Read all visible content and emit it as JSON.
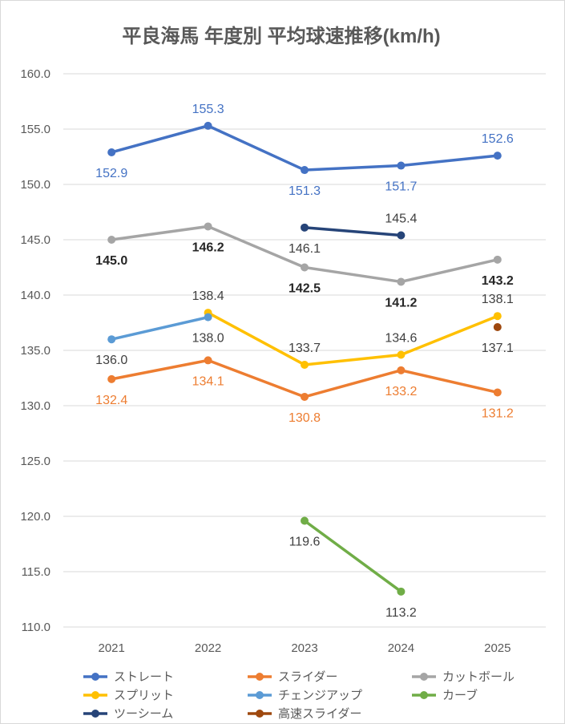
{
  "chart_data": {
    "type": "line",
    "title": "平良海馬 年度別 平均球速推移(km/h)",
    "categories": [
      "2021",
      "2022",
      "2023",
      "2024",
      "2025"
    ],
    "y_tick_labels": [
      "160.0",
      "155.0",
      "150.0",
      "145.0",
      "140.0",
      "135.0",
      "130.0",
      "125.0",
      "120.0",
      "115.0",
      "110.0"
    ],
    "ylim": [
      110,
      160
    ],
    "y_step": 5,
    "grid": true,
    "legend_position": "bottom",
    "series": [
      {
        "name": "ストレート",
        "color": "#4472c4",
        "values": [
          152.9,
          155.3,
          151.3,
          151.7,
          152.6
        ],
        "labels": [
          "152.9",
          "155.3",
          "151.3",
          "151.7",
          "152.6"
        ],
        "label_color": "#4472c4",
        "label_bold": false
      },
      {
        "name": "スライダー",
        "color": "#ed7d31",
        "values": [
          132.4,
          134.1,
          130.8,
          133.2,
          131.2
        ],
        "labels": [
          "132.4",
          "134.1",
          "130.8",
          "133.2",
          "131.2"
        ],
        "label_color": "#ed7d31",
        "label_bold": false
      },
      {
        "name": "カットボール",
        "color": "#a5a5a5",
        "values": [
          145.0,
          146.2,
          142.5,
          141.2,
          143.2
        ],
        "labels": [
          "145.0",
          "146.2",
          "142.5",
          "141.2",
          "143.2"
        ],
        "label_color": "#262626",
        "label_bold": true
      },
      {
        "name": "スプリット",
        "color": "#ffc000",
        "values": [
          null,
          138.4,
          133.7,
          134.6,
          138.1
        ],
        "labels": [
          "",
          "138.4",
          "133.7",
          "134.6",
          "138.1"
        ],
        "label_color": "#404040",
        "label_bold": false
      },
      {
        "name": "チェンジアップ",
        "color": "#5b9bd5",
        "values": [
          136.0,
          138.0,
          null,
          null,
          null
        ],
        "labels": [
          "136.0",
          "138.0",
          "",
          "",
          ""
        ],
        "label_color": "#404040",
        "label_bold": false
      },
      {
        "name": "カーブ",
        "color": "#70ad47",
        "values": [
          null,
          null,
          119.6,
          113.2,
          null
        ],
        "labels": [
          "",
          "",
          "119.6",
          "113.2",
          ""
        ],
        "label_color": "#404040",
        "label_bold": false
      },
      {
        "name": "ツーシーム",
        "color": "#264478",
        "values": [
          null,
          null,
          146.1,
          145.4,
          null
        ],
        "labels": [
          "",
          "",
          "146.1",
          "145.4",
          ""
        ],
        "label_color": "#404040",
        "label_bold": false
      },
      {
        "name": "高速スライダー",
        "color": "#9e480e",
        "values": [
          null,
          null,
          null,
          null,
          137.1
        ],
        "labels": [
          "",
          "",
          "",
          "",
          "137.1"
        ],
        "label_color": "#404040",
        "label_bold": false
      }
    ]
  }
}
